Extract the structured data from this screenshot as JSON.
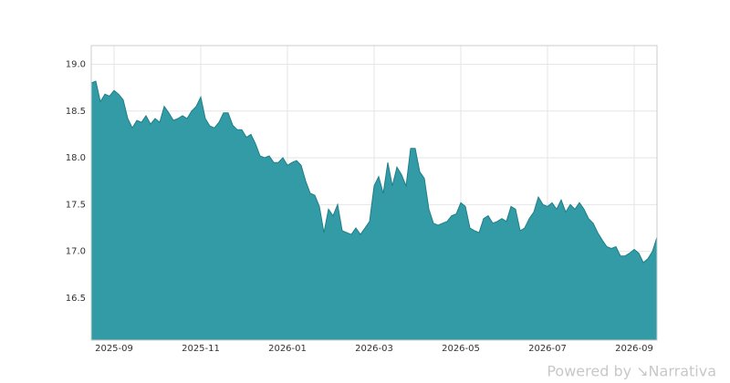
{
  "chart_data": {
    "type": "area",
    "color": "#339ba6",
    "line_color": "#1f7f89",
    "grid": true,
    "watermark": "Powered by ↘Narrativa",
    "categories": [
      null,
      null,
      null,
      null,
      null,
      "2025-09",
      null,
      null,
      null,
      null,
      null,
      null,
      null,
      null,
      null,
      null,
      null,
      null,
      null,
      null,
      null,
      null,
      null,
      null,
      "2025-11",
      null,
      null,
      null,
      null,
      null,
      null,
      null,
      null,
      null,
      null,
      null,
      null,
      null,
      null,
      null,
      null,
      null,
      null,
      "2026-01",
      null,
      null,
      null,
      null,
      null,
      null,
      null,
      null,
      null,
      null,
      null,
      null,
      null,
      null,
      null,
      null,
      null,
      null,
      "2026-03",
      null,
      null,
      null,
      null,
      null,
      null,
      null,
      null,
      null,
      null,
      null,
      null,
      null,
      null,
      null,
      null,
      null,
      null,
      "2026-05",
      null,
      null,
      null,
      null,
      null,
      null,
      null,
      null,
      null,
      null,
      null,
      null,
      null,
      null,
      null,
      null,
      null,
      null,
      "2026-07",
      null,
      null,
      null,
      null,
      null,
      null,
      null,
      null,
      null,
      null,
      null,
      null,
      null,
      null,
      null,
      null,
      null,
      null,
      "2026-09",
      null,
      null,
      null,
      null,
      null
    ],
    "values": [
      18.8,
      18.82,
      18.6,
      18.68,
      18.66,
      18.72,
      18.68,
      18.62,
      18.42,
      18.32,
      18.4,
      18.38,
      18.45,
      18.36,
      18.42,
      18.38,
      18.55,
      18.48,
      18.4,
      18.42,
      18.45,
      18.42,
      18.5,
      18.55,
      18.65,
      18.42,
      18.34,
      18.32,
      18.38,
      18.48,
      18.48,
      18.35,
      18.3,
      18.3,
      18.22,
      18.25,
      18.15,
      18.02,
      18.0,
      18.02,
      17.95,
      17.95,
      18.0,
      17.92,
      17.95,
      17.97,
      17.92,
      17.75,
      17.62,
      17.6,
      17.48,
      17.2,
      17.45,
      17.38,
      17.5,
      17.22,
      17.2,
      17.18,
      17.25,
      17.18,
      17.25,
      17.32,
      17.7,
      17.8,
      17.62,
      17.95,
      17.7,
      17.9,
      17.82,
      17.7,
      18.1,
      18.1,
      17.85,
      17.78,
      17.45,
      17.3,
      17.28,
      17.3,
      17.32,
      17.38,
      17.4,
      17.52,
      17.48,
      17.25,
      17.22,
      17.2,
      17.35,
      17.38,
      17.3,
      17.32,
      17.35,
      17.32,
      17.48,
      17.45,
      17.22,
      17.25,
      17.35,
      17.42,
      17.58,
      17.5,
      17.48,
      17.52,
      17.45,
      17.55,
      17.42,
      17.5,
      17.45,
      17.52,
      17.45,
      17.35,
      17.3,
      17.2,
      17.12,
      17.05,
      17.03,
      17.05,
      16.95,
      16.95,
      16.98,
      17.02,
      16.98,
      16.88,
      16.92,
      17.0,
      17.15
    ],
    "ylim": [
      16.05,
      19.2
    ],
    "yticks": [
      16.5,
      {
        "value": 17.0,
        "label": "17.0"
      },
      17.5,
      {
        "value": 18.0,
        "label": "18.0"
      },
      18.5,
      {
        "value": 19.0,
        "label": "19.0"
      }
    ]
  }
}
